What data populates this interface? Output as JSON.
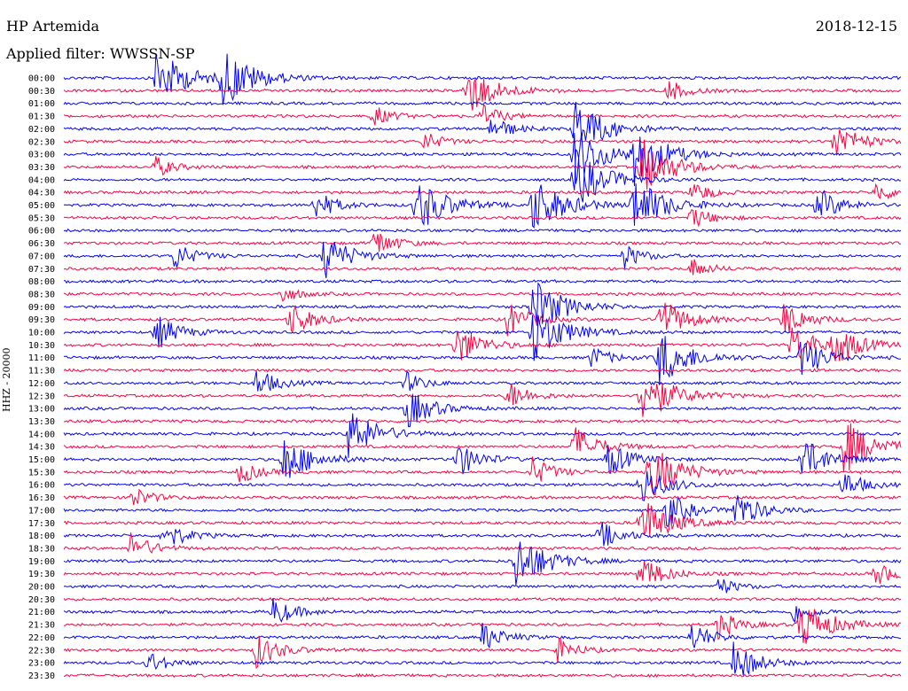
{
  "header": {
    "station": "HP Artemida",
    "date": "2018-12-15",
    "filter": "Applied filter: WWSSN-SP"
  },
  "chart_data": {
    "type": "line",
    "title": "HP Artemida",
    "subtitle": "Applied filter: WWSSN-SP",
    "date": "2018-12-15",
    "ylabel": "HHZ - 20000",
    "xlabel": "",
    "colors": [
      "#0000ff",
      "#ff0040"
    ],
    "grid": false,
    "rows": [
      "00:00",
      "00:30",
      "01:00",
      "01:30",
      "02:00",
      "02:30",
      "03:00",
      "03:30",
      "04:00",
      "04:30",
      "05:00",
      "05:30",
      "06:00",
      "06:30",
      "07:00",
      "07:30",
      "08:00",
      "08:30",
      "09:00",
      "09:30",
      "10:00",
      "10:30",
      "11:00",
      "11:30",
      "12:00",
      "12:30",
      "13:00",
      "13:30",
      "14:00",
      "14:30",
      "15:00",
      "15:30",
      "16:00",
      "16:30",
      "17:00",
      "17:30",
      "18:00",
      "18:30",
      "19:00",
      "19:30",
      "20:00",
      "20:30",
      "21:00",
      "21:30",
      "22:00",
      "22:30",
      "23:00",
      "23:30"
    ],
    "events": [
      {
        "row": 0,
        "x": 0.11,
        "amp": 1.0
      },
      {
        "row": 0,
        "x": 0.19,
        "amp": 1.0
      },
      {
        "row": 1,
        "x": 0.48,
        "amp": 0.9
      },
      {
        "row": 1,
        "x": 0.72,
        "amp": 0.4
      },
      {
        "row": 3,
        "x": 0.37,
        "amp": 0.35
      },
      {
        "row": 3,
        "x": 0.5,
        "amp": 0.4
      },
      {
        "row": 4,
        "x": 0.51,
        "amp": 0.45
      },
      {
        "row": 4,
        "x": 0.61,
        "amp": 1.0
      },
      {
        "row": 5,
        "x": 0.43,
        "amp": 0.35
      },
      {
        "row": 5,
        "x": 0.92,
        "amp": 0.7
      },
      {
        "row": 6,
        "x": 0.61,
        "amp": 1.0
      },
      {
        "row": 6,
        "x": 0.68,
        "amp": 1.0
      },
      {
        "row": 7,
        "x": 0.11,
        "amp": 0.35
      },
      {
        "row": 7,
        "x": 0.69,
        "amp": 1.0
      },
      {
        "row": 8,
        "x": 0.61,
        "amp": 1.0
      },
      {
        "row": 9,
        "x": 0.75,
        "amp": 0.4
      },
      {
        "row": 9,
        "x": 0.97,
        "amp": 0.35
      },
      {
        "row": 10,
        "x": 0.3,
        "amp": 0.5
      },
      {
        "row": 10,
        "x": 0.42,
        "amp": 1.0
      },
      {
        "row": 10,
        "x": 0.56,
        "amp": 1.0
      },
      {
        "row": 10,
        "x": 0.68,
        "amp": 1.0
      },
      {
        "row": 10,
        "x": 0.9,
        "amp": 0.6
      },
      {
        "row": 11,
        "x": 0.75,
        "amp": 0.4
      },
      {
        "row": 13,
        "x": 0.37,
        "amp": 0.5
      },
      {
        "row": 14,
        "x": 0.13,
        "amp": 0.5
      },
      {
        "row": 14,
        "x": 0.31,
        "amp": 0.8
      },
      {
        "row": 14,
        "x": 0.67,
        "amp": 0.4
      },
      {
        "row": 15,
        "x": 0.75,
        "amp": 0.35
      },
      {
        "row": 17,
        "x": 0.26,
        "amp": 0.3
      },
      {
        "row": 18,
        "x": 0.56,
        "amp": 1.0
      },
      {
        "row": 19,
        "x": 0.27,
        "amp": 0.6
      },
      {
        "row": 19,
        "x": 0.53,
        "amp": 0.6
      },
      {
        "row": 19,
        "x": 0.71,
        "amp": 0.8
      },
      {
        "row": 19,
        "x": 0.86,
        "amp": 0.6
      },
      {
        "row": 20,
        "x": 0.11,
        "amp": 0.6
      },
      {
        "row": 20,
        "x": 0.56,
        "amp": 1.0
      },
      {
        "row": 21,
        "x": 0.47,
        "amp": 0.7
      },
      {
        "row": 21,
        "x": 0.87,
        "amp": 0.7
      },
      {
        "row": 21,
        "x": 0.92,
        "amp": 0.7
      },
      {
        "row": 22,
        "x": 0.63,
        "amp": 0.4
      },
      {
        "row": 22,
        "x": 0.71,
        "amp": 1.0
      },
      {
        "row": 22,
        "x": 0.88,
        "amp": 0.7
      },
      {
        "row": 24,
        "x": 0.23,
        "amp": 0.5
      },
      {
        "row": 24,
        "x": 0.41,
        "amp": 0.35
      },
      {
        "row": 25,
        "x": 0.53,
        "amp": 0.5
      },
      {
        "row": 25,
        "x": 0.69,
        "amp": 1.0
      },
      {
        "row": 26,
        "x": 0.41,
        "amp": 0.7
      },
      {
        "row": 28,
        "x": 0.34,
        "amp": 0.9
      },
      {
        "row": 29,
        "x": 0.61,
        "amp": 0.7
      },
      {
        "row": 29,
        "x": 0.93,
        "amp": 1.0
      },
      {
        "row": 30,
        "x": 0.26,
        "amp": 0.9
      },
      {
        "row": 30,
        "x": 0.47,
        "amp": 0.6
      },
      {
        "row": 30,
        "x": 0.65,
        "amp": 0.6
      },
      {
        "row": 30,
        "x": 0.88,
        "amp": 0.8
      },
      {
        "row": 31,
        "x": 0.21,
        "amp": 0.4
      },
      {
        "row": 31,
        "x": 0.56,
        "amp": 0.5
      },
      {
        "row": 31,
        "x": 0.7,
        "amp": 1.0
      },
      {
        "row": 32,
        "x": 0.69,
        "amp": 0.7
      },
      {
        "row": 32,
        "x": 0.93,
        "amp": 0.5
      },
      {
        "row": 33,
        "x": 0.08,
        "amp": 0.4
      },
      {
        "row": 34,
        "x": 0.72,
        "amp": 0.6
      },
      {
        "row": 34,
        "x": 0.8,
        "amp": 0.7
      },
      {
        "row": 35,
        "x": 0.69,
        "amp": 0.9
      },
      {
        "row": 36,
        "x": 0.12,
        "amp": 0.5
      },
      {
        "row": 36,
        "x": 0.64,
        "amp": 0.5
      },
      {
        "row": 37,
        "x": 0.08,
        "amp": 0.5
      },
      {
        "row": 38,
        "x": 0.54,
        "amp": 1.0
      },
      {
        "row": 39,
        "x": 0.69,
        "amp": 0.6
      },
      {
        "row": 39,
        "x": 0.97,
        "amp": 0.4
      },
      {
        "row": 40,
        "x": 0.78,
        "amp": 0.35
      },
      {
        "row": 42,
        "x": 0.25,
        "amp": 0.5
      },
      {
        "row": 42,
        "x": 0.87,
        "amp": 0.4
      },
      {
        "row": 43,
        "x": 0.78,
        "amp": 0.5
      },
      {
        "row": 43,
        "x": 0.88,
        "amp": 0.9
      },
      {
        "row": 44,
        "x": 0.5,
        "amp": 0.5
      },
      {
        "row": 44,
        "x": 0.75,
        "amp": 0.5
      },
      {
        "row": 45,
        "x": 0.23,
        "amp": 0.6
      },
      {
        "row": 45,
        "x": 0.59,
        "amp": 0.4
      },
      {
        "row": 46,
        "x": 0.1,
        "amp": 0.4
      },
      {
        "row": 46,
        "x": 0.8,
        "amp": 0.7
      }
    ]
  }
}
